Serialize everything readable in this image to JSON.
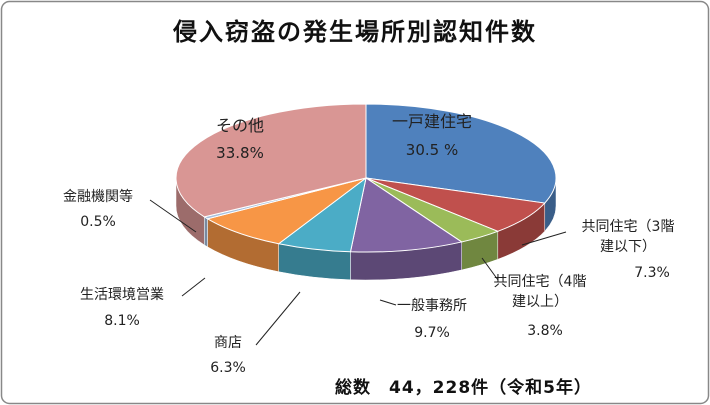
{
  "chart_data": {
    "type": "pie",
    "title": "侵入窃盗の発生場所別認知件数",
    "categories": [
      "一戸建住宅",
      "共同住宅（3階建以下）",
      "共同住宅（4階建以上）",
      "一般事務所",
      "商店",
      "生活環境営業",
      "金融機関等",
      "その他"
    ],
    "values": [
      30.5,
      7.3,
      3.8,
      9.7,
      6.3,
      8.1,
      0.5,
      33.8
    ],
    "value_labels": [
      "30.5 %",
      "7.3%",
      "3.8%",
      "9.7%",
      "6.3%",
      "8.1%",
      "0.5%",
      "33.8%"
    ],
    "colors": [
      "#4f81bd",
      "#c0504d",
      "#9bbb59",
      "#8064a2",
      "#4bacc6",
      "#f79646",
      "#a7c0de",
      "#d99694"
    ],
    "annotation": "総数　44，228件（令和5年）"
  }
}
